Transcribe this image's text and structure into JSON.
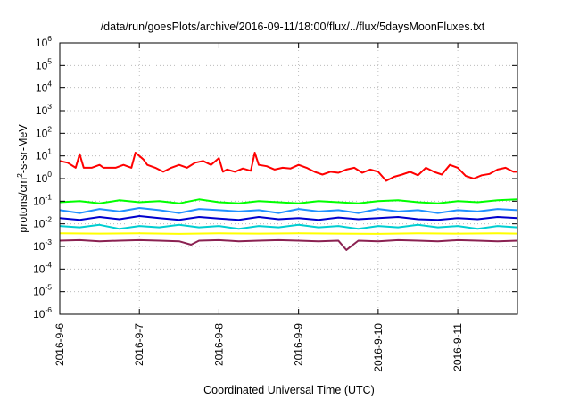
{
  "chart_data": {
    "type": "line",
    "title": "/data/run/goesPlots/archive/2016-09-11/18:00/flux/../flux/5daysMoonFluxes.txt",
    "xlabel": "Coordinated Universal Time (UTC)",
    "ylabel": {
      "pre": "protons/cm",
      "sup": "2",
      "post": "-s-sr-MeV"
    },
    "y_scale": "log",
    "ylim": [
      1e-06,
      1000000.0
    ],
    "xlim_days": [
      0,
      5.75
    ],
    "x_ticks": [
      {
        "label": "2016-9-6",
        "day": 0
      },
      {
        "label": "2016-9-7",
        "day": 1
      },
      {
        "label": "2016-9-8",
        "day": 2
      },
      {
        "label": "2016-9-9",
        "day": 3
      },
      {
        "label": "2016-9-10",
        "day": 4
      },
      {
        "label": "2016-9-11",
        "day": 5
      }
    ],
    "y_ticks": [
      {
        "base": "10",
        "exp": "6",
        "value": 1000000.0
      },
      {
        "base": "10",
        "exp": "5",
        "value": 100000.0
      },
      {
        "base": "10",
        "exp": "4",
        "value": 10000.0
      },
      {
        "base": "10",
        "exp": "3",
        "value": 1000.0
      },
      {
        "base": "10",
        "exp": "2",
        "value": 100.0
      },
      {
        "base": "10",
        "exp": "1",
        "value": 10.0
      },
      {
        "base": "10",
        "exp": "0",
        "value": 1.0
      },
      {
        "base": "10",
        "exp": "-1",
        "value": 0.1
      },
      {
        "base": "10",
        "exp": "-2",
        "value": 0.01
      },
      {
        "base": "10",
        "exp": "-3",
        "value": 0.001
      },
      {
        "base": "10",
        "exp": "-4",
        "value": 0.0001
      },
      {
        "base": "10",
        "exp": "-5",
        "value": 1e-05
      },
      {
        "base": "10",
        "exp": "-6",
        "value": 1e-06
      }
    ],
    "grid": true,
    "legend": "none",
    "series": [
      {
        "color": "#ff0000",
        "x": [
          0,
          0.1,
          0.2,
          0.25,
          0.3,
          0.4,
          0.5,
          0.55,
          0.6,
          0.7,
          0.8,
          0.9,
          0.95,
          1.0,
          1.05,
          1.1,
          1.2,
          1.3,
          1.4,
          1.5,
          1.6,
          1.7,
          1.8,
          1.9,
          2.0,
          2.05,
          2.1,
          2.2,
          2.3,
          2.4,
          2.45,
          2.5,
          2.6,
          2.7,
          2.8,
          2.9,
          3.0,
          3.1,
          3.2,
          3.3,
          3.4,
          3.5,
          3.6,
          3.7,
          3.8,
          3.9,
          4.0,
          4.1,
          4.2,
          4.3,
          4.4,
          4.5,
          4.6,
          4.7,
          4.8,
          4.9,
          5.0,
          5.1,
          5.2,
          5.3,
          5.4,
          5.5,
          5.6,
          5.7,
          5.75
        ],
        "y": [
          6,
          5,
          3,
          12,
          3,
          3,
          4,
          3,
          3,
          3,
          4,
          3,
          14,
          10,
          7,
          4,
          3,
          2,
          3,
          4,
          3,
          5,
          6,
          4,
          8,
          2,
          2.5,
          2,
          2.8,
          2.2,
          14,
          4,
          3.5,
          2.5,
          3,
          2.8,
          4,
          3,
          2,
          1.5,
          2,
          1.8,
          2.5,
          3,
          1.8,
          2.5,
          2,
          0.8,
          1.2,
          1.5,
          2,
          1.4,
          3,
          2,
          1.5,
          4,
          3,
          1.3,
          1,
          1.4,
          1.6,
          2.5,
          3,
          2,
          2
        ]
      },
      {
        "color": "#00ff00",
        "x": [
          0,
          0.25,
          0.5,
          0.75,
          1.0,
          1.25,
          1.5,
          1.75,
          2.0,
          2.25,
          2.5,
          2.75,
          3.0,
          3.25,
          3.5,
          3.75,
          4.0,
          4.25,
          4.5,
          4.75,
          5.0,
          5.25,
          5.5,
          5.75
        ],
        "y": [
          0.09,
          0.1,
          0.08,
          0.11,
          0.09,
          0.1,
          0.08,
          0.12,
          0.09,
          0.08,
          0.1,
          0.09,
          0.08,
          0.1,
          0.09,
          0.08,
          0.1,
          0.11,
          0.09,
          0.08,
          0.1,
          0.09,
          0.11,
          0.12
        ]
      },
      {
        "color": "#1e90ff",
        "x": [
          0,
          0.25,
          0.5,
          0.75,
          1.0,
          1.25,
          1.5,
          1.75,
          2.0,
          2.25,
          2.5,
          2.75,
          3.0,
          3.25,
          3.5,
          3.75,
          4.0,
          4.25,
          4.5,
          4.75,
          5.0,
          5.25,
          5.5,
          5.75
        ],
        "y": [
          0.04,
          0.03,
          0.045,
          0.035,
          0.05,
          0.04,
          0.03,
          0.045,
          0.04,
          0.035,
          0.04,
          0.03,
          0.045,
          0.035,
          0.04,
          0.03,
          0.045,
          0.035,
          0.04,
          0.03,
          0.04,
          0.035,
          0.045,
          0.04
        ]
      },
      {
        "color": "#0000cd",
        "x": [
          0,
          0.25,
          0.5,
          0.75,
          1.0,
          1.25,
          1.5,
          1.75,
          2.0,
          2.25,
          2.5,
          2.75,
          3.0,
          3.25,
          3.5,
          3.75,
          4.0,
          4.25,
          4.5,
          4.75,
          5.0,
          5.25,
          5.5,
          5.75
        ],
        "y": [
          0.018,
          0.015,
          0.02,
          0.016,
          0.022,
          0.018,
          0.015,
          0.02,
          0.017,
          0.015,
          0.02,
          0.016,
          0.018,
          0.015,
          0.019,
          0.016,
          0.018,
          0.02,
          0.016,
          0.015,
          0.018,
          0.016,
          0.02,
          0.018
        ]
      },
      {
        "color": "#00ced1",
        "x": [
          0,
          0.25,
          0.5,
          0.75,
          1.0,
          1.25,
          1.5,
          1.75,
          2.0,
          2.25,
          2.5,
          2.75,
          3.0,
          3.25,
          3.5,
          3.75,
          4.0,
          4.25,
          4.5,
          4.75,
          5.0,
          5.25,
          5.5,
          5.75
        ],
        "y": [
          0.008,
          0.007,
          0.009,
          0.006,
          0.008,
          0.007,
          0.009,
          0.007,
          0.008,
          0.006,
          0.008,
          0.007,
          0.009,
          0.007,
          0.008,
          0.006,
          0.008,
          0.007,
          0.009,
          0.007,
          0.008,
          0.006,
          0.008,
          0.007
        ]
      },
      {
        "color": "#ffff00",
        "x": [
          0,
          0.5,
          1.0,
          1.5,
          2.0,
          2.5,
          3.0,
          3.5,
          4.0,
          4.5,
          5.0,
          5.5,
          5.75
        ],
        "y": [
          0.0038,
          0.0037,
          0.0038,
          0.0036,
          0.0038,
          0.0037,
          0.0038,
          0.0037,
          0.0036,
          0.0038,
          0.0037,
          0.0038,
          0.0037
        ]
      },
      {
        "color": "#8b2252",
        "x": [
          0,
          0.25,
          0.5,
          0.75,
          1.0,
          1.25,
          1.5,
          1.65,
          1.75,
          2.0,
          2.25,
          2.5,
          2.75,
          3.0,
          3.25,
          3.5,
          3.6,
          3.75,
          4.0,
          4.25,
          4.5,
          4.75,
          5.0,
          5.25,
          5.5,
          5.75
        ],
        "y": [
          0.0018,
          0.0019,
          0.0017,
          0.0018,
          0.0019,
          0.0018,
          0.0017,
          0.0012,
          0.0018,
          0.0019,
          0.0017,
          0.0018,
          0.0019,
          0.0018,
          0.0017,
          0.0018,
          0.0007,
          0.0018,
          0.0017,
          0.0019,
          0.0018,
          0.0017,
          0.0019,
          0.0018,
          0.0017,
          0.0018
        ]
      }
    ]
  }
}
